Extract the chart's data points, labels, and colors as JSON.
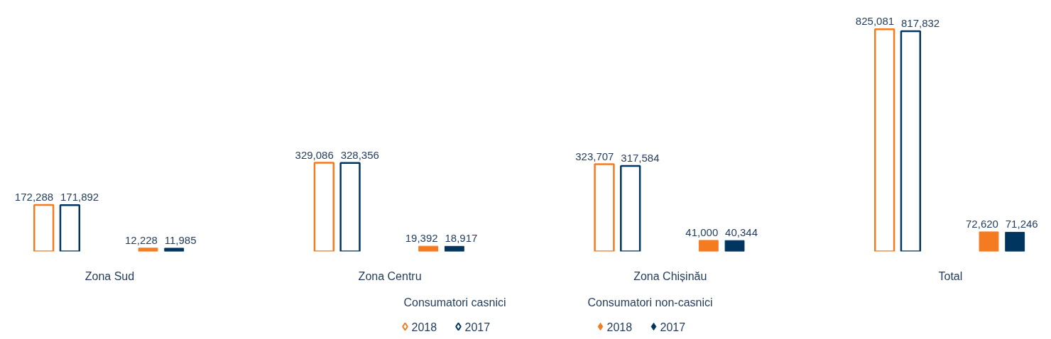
{
  "chart_data": {
    "type": "bar",
    "categories": [
      "Zona Sud",
      "Zona Centru",
      "Zona Chișinău",
      "Total"
    ],
    "series": [
      {
        "name": "2018",
        "color": "#f47b20",
        "values": [
          172288,
          329086,
          323707,
          825081
        ],
        "value_labels": [
          "172,288",
          "329,086",
          "323,707",
          "825,081"
        ]
      },
      {
        "name": "2017",
        "color": "#00355f",
        "values": [
          171892,
          328356,
          317584,
          817832
        ],
        "value_labels": [
          "171,892",
          "328,356",
          "317,584",
          "817,832"
        ]
      },
      {
        "name": "2018",
        "color": "#f47b20",
        "values": [
          12228,
          19392,
          41000,
          72620
        ],
        "value_labels": [
          "12,228",
          "19,392",
          "41,000",
          "72,620"
        ]
      },
      {
        "name": "2017",
        "color": "#00355f",
        "values": [
          11985,
          18917,
          40344,
          71246
        ],
        "value_labels": [
          "11,985",
          "18,917",
          "40,344",
          "71,246"
        ]
      }
    ],
    "annotations": [
      "Consumatori casnici",
      "Consumatori non-casnici"
    ],
    "grid": false,
    "legend": "bottom",
    "marker": "diamond"
  }
}
